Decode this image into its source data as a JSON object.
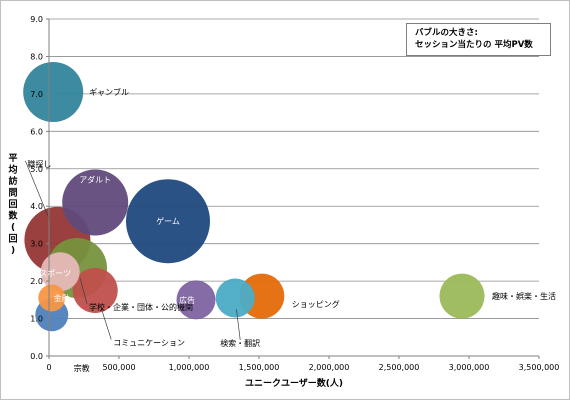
{
  "chart_data": {
    "type": "bubble",
    "xlabel": "ユニークユーザー数(人)",
    "ylabel": "平均訪問回数(回)",
    "xlim": [
      0,
      3500000
    ],
    "ylim": [
      0,
      9
    ],
    "x_ticks": [
      "0",
      "500,000",
      "1,000,000",
      "1,500,000",
      "2,000,000",
      "2,500,000",
      "3,000,000",
      "3,500,000"
    ],
    "y_ticks": [
      "0.0",
      "1.0",
      "2.0",
      "3.0",
      "4.0",
      "5.0",
      "6.0",
      "7.0",
      "8.0",
      "9.0"
    ],
    "note_lines": [
      "バブルの大きさ:",
      "セッション当たりの 平均PV数"
    ],
    "grid": true,
    "points": [
      {
        "name": "ギャンブル",
        "x": 30000,
        "y": 7.05,
        "size": 1.0,
        "color": "#31859c"
      },
      {
        "name": "職探し",
        "x": 60000,
        "y": 3.1,
        "size": 1.1,
        "color": "#953735"
      },
      {
        "name": "アダルト",
        "x": 330000,
        "y": 4.1,
        "size": 1.1,
        "color": "#604a7b"
      },
      {
        "name": "ゲーム",
        "x": 850000,
        "y": 3.6,
        "size": 1.4,
        "color": "#1f497d"
      },
      {
        "name": "学校・企業・団体・公的機関",
        "x": 200000,
        "y": 2.35,
        "size": 1.0,
        "color": "#76923c"
      },
      {
        "name": "スポーツ",
        "x": 80000,
        "y": 2.25,
        "size": 0.65,
        "color": "#e6b9b8"
      },
      {
        "name": "コミュニケーション",
        "x": 330000,
        "y": 1.75,
        "size": 0.75,
        "color": "#c0504d"
      },
      {
        "name": "宗教",
        "x": 20000,
        "y": 1.1,
        "size": 0.55,
        "color": "#4f81bd"
      },
      {
        "name": "金融",
        "x": 20000,
        "y": 1.55,
        "size": 0.45,
        "color": "#f79646"
      },
      {
        "name": "広告",
        "x": 1050000,
        "y": 1.5,
        "size": 0.65,
        "color": "#8064a2"
      },
      {
        "name": "ショッピング",
        "x": 1520000,
        "y": 1.6,
        "size": 0.75,
        "color": "#e46c0a"
      },
      {
        "name": "検索・翻訳",
        "x": 1330000,
        "y": 1.55,
        "size": 0.65,
        "color": "#4bacc6"
      },
      {
        "name": "趣味・娯楽・生活",
        "x": 2950000,
        "y": 1.6,
        "size": 0.75,
        "color": "#9bbb59"
      }
    ]
  }
}
